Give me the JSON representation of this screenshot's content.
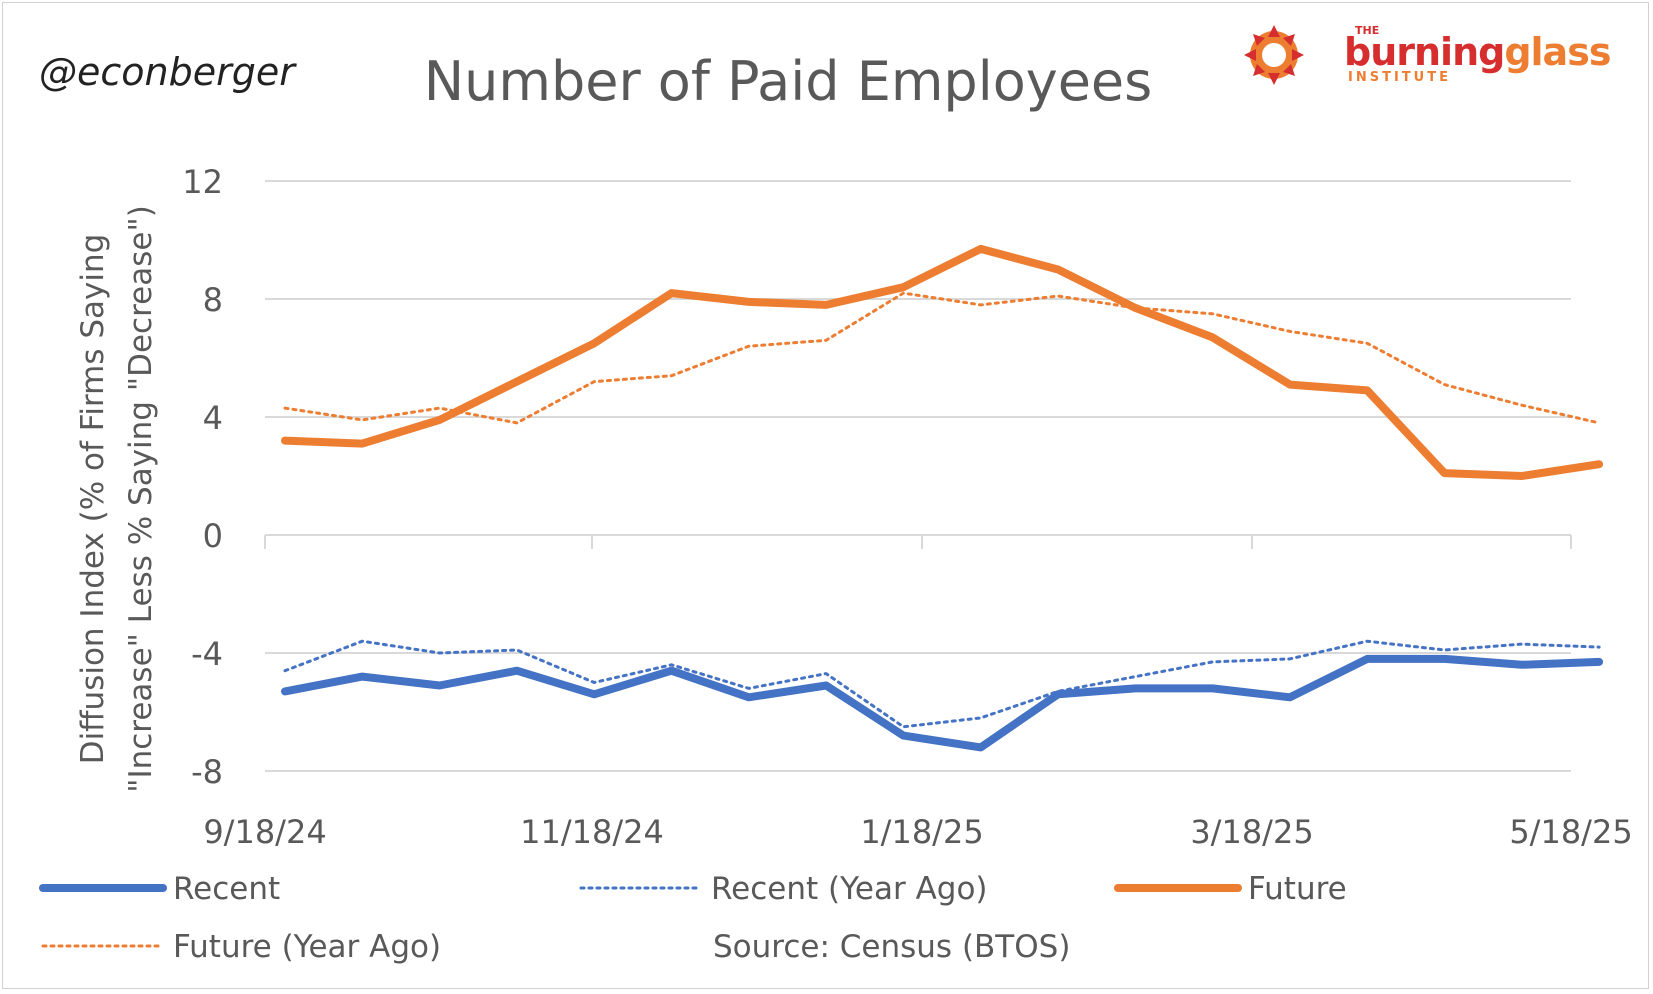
{
  "handle": "@econberger",
  "logo": {
    "small": "THE",
    "word_a": "burning",
    "word_b": "glass",
    "sub": "INSTITUTE",
    "icon": "sunburst-icon",
    "color_orange": "#ed7d31",
    "color_red": "#d62e2e"
  },
  "source_note": "Source: Census (BTOS)",
  "chart_data": {
    "type": "line",
    "title": "Number of Paid Employees",
    "xlabel": "",
    "ylabel_line1": "Diffusion Index (% of Firms Saying",
    "ylabel_line2": "\"Increase\" Less % Saying \"Decrease\")",
    "ylim": [
      -8,
      12
    ],
    "yticks": [
      -8,
      -4,
      0,
      4,
      8,
      12
    ],
    "ytick_labels": [
      "-8",
      "-4",
      "0",
      "4",
      "8",
      "12"
    ],
    "x": [
      "9/18/24",
      "10/2/24",
      "10/16/24",
      "10/30/24",
      "11/13/24",
      "11/27/24",
      "12/11/24",
      "12/25/24",
      "1/8/25",
      "1/22/25",
      "2/5/25",
      "2/19/25",
      "3/5/25",
      "3/19/25",
      "4/2/25",
      "4/16/25",
      "4/30/25",
      "5/14/25"
    ],
    "xtick_labels": [
      "9/18/24",
      "11/18/24",
      "1/18/25",
      "3/18/25",
      "5/18/25"
    ],
    "grid": true,
    "legend_position": "bottom",
    "series": [
      {
        "name": "Recent",
        "color": "#4472c4",
        "style": "solid",
        "values": [
          -5.3,
          -4.8,
          -5.1,
          -4.6,
          -5.4,
          -4.6,
          -5.5,
          -5.1,
          -6.8,
          -7.2,
          -5.4,
          -5.2,
          -5.2,
          -5.5,
          -4.2,
          -4.2,
          -4.4,
          -4.3
        ]
      },
      {
        "name": "Recent (Year Ago)",
        "color": "#4472c4",
        "style": "dotted",
        "values": [
          -4.6,
          -3.6,
          -4.0,
          -3.9,
          -5.0,
          -4.4,
          -5.2,
          -4.7,
          -6.5,
          -6.2,
          -5.3,
          -4.8,
          -4.3,
          -4.2,
          -3.6,
          -3.9,
          -3.7,
          -3.8
        ]
      },
      {
        "name": "Future",
        "color": "#ed7d31",
        "style": "solid",
        "values": [
          3.2,
          3.1,
          3.9,
          5.2,
          6.5,
          8.2,
          7.9,
          7.8,
          8.4,
          9.7,
          9.0,
          7.7,
          6.7,
          5.1,
          4.9,
          2.1,
          2.0,
          2.4
        ]
      },
      {
        "name": "Future (Year Ago)",
        "color": "#ed7d31",
        "style": "dotted",
        "values": [
          4.3,
          3.9,
          4.3,
          3.8,
          5.2,
          5.4,
          6.4,
          6.6,
          8.2,
          7.8,
          8.1,
          7.7,
          7.5,
          6.9,
          6.5,
          5.1,
          4.4,
          3.8
        ]
      }
    ]
  }
}
